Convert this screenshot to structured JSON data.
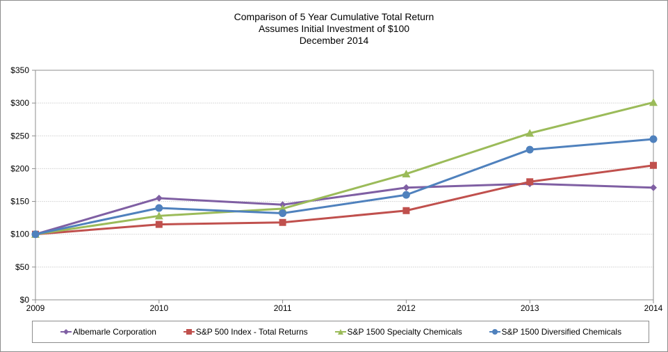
{
  "chart_data": {
    "type": "line",
    "title": "Comparison of 5 Year Cumulative Total Return",
    "subtitle_lines": [
      "Assumes Initial Investment of $100",
      "December 2014"
    ],
    "xlabel": "",
    "ylabel": "",
    "x": [
      "2009",
      "2010",
      "2011",
      "2012",
      "2013",
      "2014"
    ],
    "ylim": [
      0,
      350
    ],
    "yticks": [
      0,
      50,
      100,
      150,
      200,
      250,
      300,
      350
    ],
    "ytick_labels": [
      "$0",
      "$50",
      "$100",
      "$150",
      "$200",
      "$250",
      "$300",
      "$350"
    ],
    "grid": true,
    "legend_position": "bottom",
    "series": [
      {
        "name": "Albemarle Corporation",
        "color": "#7f5fa3",
        "marker": "diamond",
        "values": [
          100,
          155,
          145,
          171,
          177,
          171
        ]
      },
      {
        "name": "S&P 500 Index - Total Returns",
        "color": "#c0504d",
        "marker": "square",
        "values": [
          100,
          115,
          118,
          136,
          180,
          205
        ]
      },
      {
        "name": "S&P 1500 Specialty Chemicals",
        "color": "#9bbb59",
        "marker": "triangle",
        "values": [
          100,
          128,
          139,
          192,
          254,
          301
        ]
      },
      {
        "name": "S&P 1500 Diversified Chemicals",
        "color": "#4f81bd",
        "marker": "circle",
        "values": [
          100,
          140,
          132,
          160,
          229,
          245
        ]
      }
    ]
  }
}
